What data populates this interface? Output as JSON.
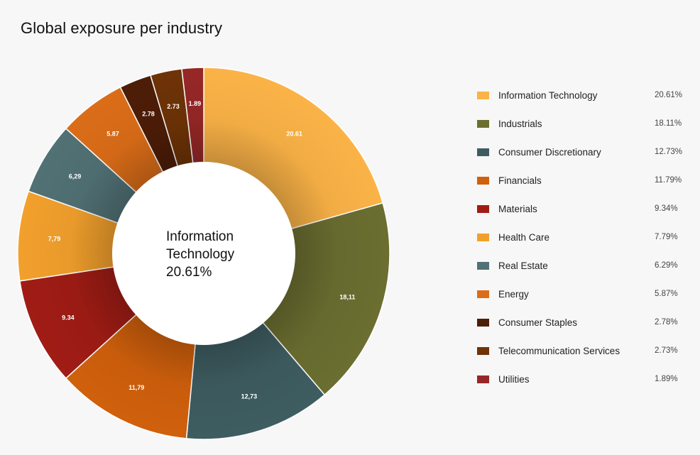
{
  "title": "Global exposure per industry",
  "center": {
    "label": "Information Technology",
    "value": "20.61%"
  },
  "chart_data": {
    "type": "pie",
    "variant": "donut",
    "title": "Global exposure per industry",
    "legend_position": "right",
    "slices": [
      {
        "name": "Information Technology",
        "value": 20.61,
        "slice_label": "20.61",
        "legend_value": "20.61%",
        "color": "#fbb347"
      },
      {
        "name": "Industrials",
        "value": 18.11,
        "slice_label": "18,11",
        "legend_value": "18.11%",
        "color": "#6b6e30"
      },
      {
        "name": "Consumer Discretionary",
        "value": 12.73,
        "slice_label": "12,73",
        "legend_value": "12.73%",
        "color": "#3e5d61"
      },
      {
        "name": "Financials",
        "value": 11.79,
        "slice_label": "11,79",
        "legend_value": "11.79%",
        "color": "#d0600c"
      },
      {
        "name": "Materials",
        "value": 9.34,
        "slice_label": "9.34",
        "legend_value": "9.34%",
        "color": "#a01c15"
      },
      {
        "name": "Health Care",
        "value": 7.79,
        "slice_label": "7,79",
        "legend_value": "7.79%",
        "color": "#f2a02c"
      },
      {
        "name": "Real Estate",
        "value": 6.29,
        "slice_label": "6,29",
        "legend_value": "6.29%",
        "color": "#517175"
      },
      {
        "name": "Energy",
        "value": 5.87,
        "slice_label": "5.87",
        "legend_value": "5.87%",
        "color": "#db6d18"
      },
      {
        "name": "Consumer Staples",
        "value": 2.78,
        "slice_label": "2.78",
        "legend_value": "2.78%",
        "color": "#4d1d07"
      },
      {
        "name": "Telecommunication Services",
        "value": 2.73,
        "slice_label": "2.73",
        "legend_value": "2.73%",
        "color": "#6e3307"
      },
      {
        "name": "Utilities",
        "value": 1.89,
        "slice_label": "1.89",
        "legend_value": "1.89%",
        "color": "#962727"
      }
    ]
  }
}
